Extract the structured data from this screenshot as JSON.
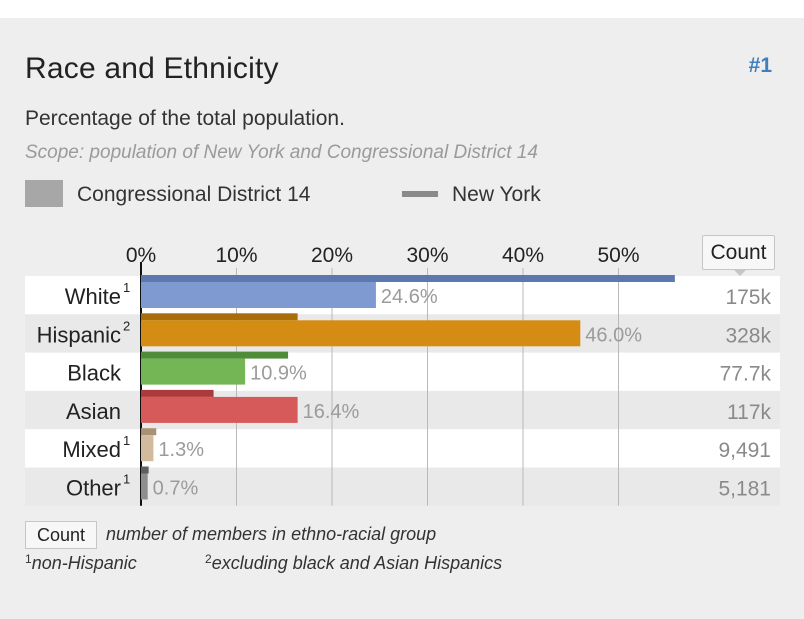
{
  "header": {
    "title": "Race and Ethnicity",
    "rank": "#1",
    "subtitle": "Percentage of the total population.",
    "scope": "Scope: population of New York and Congressional District 14"
  },
  "legend": {
    "district_label": "Congressional District 14",
    "state_label": "New York"
  },
  "count_header": "Count",
  "chart_data": {
    "type": "bar",
    "orientation": "horizontal",
    "x_ticks": [
      "0%",
      "10%",
      "20%",
      "30%",
      "40%",
      "50%"
    ],
    "xlim": [
      0,
      57
    ],
    "grid": true,
    "categories": [
      {
        "label": "White",
        "sup": "1",
        "district": 24.6,
        "district_label": "24.6%",
        "state": 55.9,
        "count": "175k",
        "color": "#7f9ad0",
        "state_color": "#5d78ae"
      },
      {
        "label": "Hispanic",
        "sup": "2",
        "district": 46.0,
        "district_label": "46.0%",
        "state": 16.4,
        "count": "328k",
        "color": "#d48d12",
        "state_color": "#a76e0a"
      },
      {
        "label": "Black",
        "sup": "",
        "district": 10.9,
        "district_label": "10.9%",
        "state": 15.4,
        "count": "77.7k",
        "color": "#74b556",
        "state_color": "#4f8c38"
      },
      {
        "label": "Asian",
        "sup": "",
        "district": 16.4,
        "district_label": "16.4%",
        "state": 7.6,
        "count": "117k",
        "color": "#d75a5a",
        "state_color": "#ad3a3a"
      },
      {
        "label": "Mixed",
        "sup": "1",
        "district": 1.3,
        "district_label": "1.3%",
        "state": 1.6,
        "count": "9,491",
        "color": "#d2bb9c",
        "state_color": "#a99274"
      },
      {
        "label": "Other",
        "sup": "1",
        "district": 0.7,
        "district_label": "0.7%",
        "state": 0.8,
        "count": "5,181",
        "color": "#8d8d8d",
        "state_color": "#5f5f5f"
      }
    ],
    "series": [
      {
        "name": "Congressional District 14"
      },
      {
        "name": "New York"
      }
    ]
  },
  "footer": {
    "count_key": "Count",
    "count_note": "number of members in ethno-racial group",
    "note1_sup": "1",
    "note1": "non-Hispanic",
    "note2_sup": "2",
    "note2": "excluding black and Asian Hispanics"
  }
}
